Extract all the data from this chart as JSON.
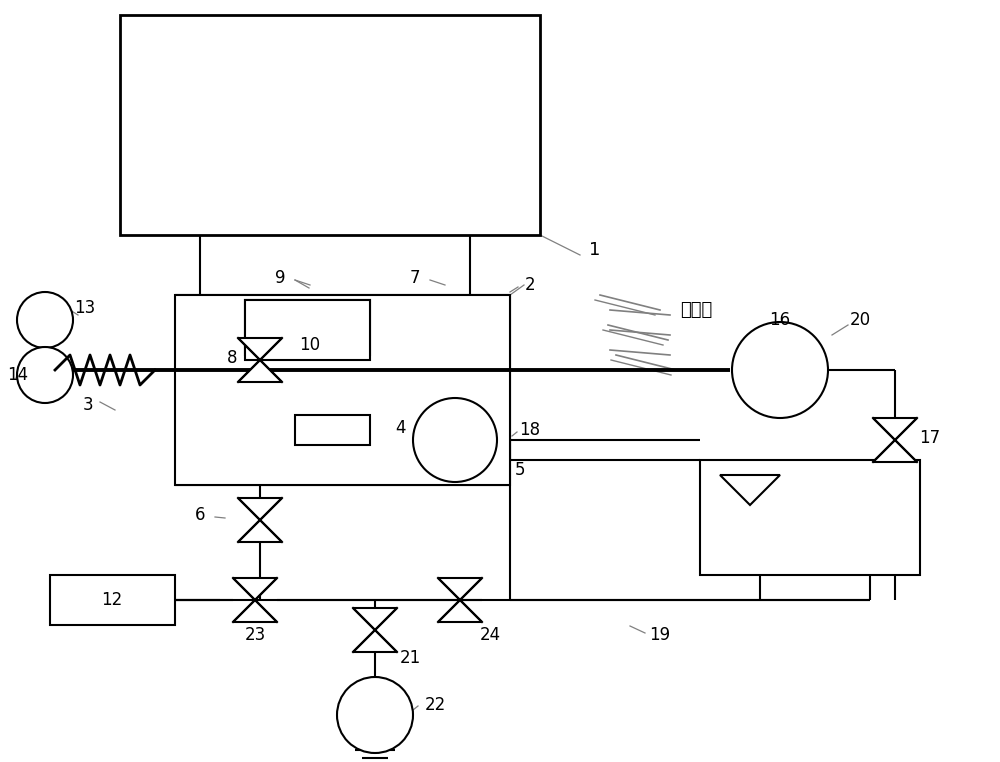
{
  "bg_color": "#ffffff",
  "lc": "#000000",
  "lw": 1.5,
  "tlw": 2.8,
  "figsize": [
    10.0,
    7.62
  ],
  "dpi": 100
}
